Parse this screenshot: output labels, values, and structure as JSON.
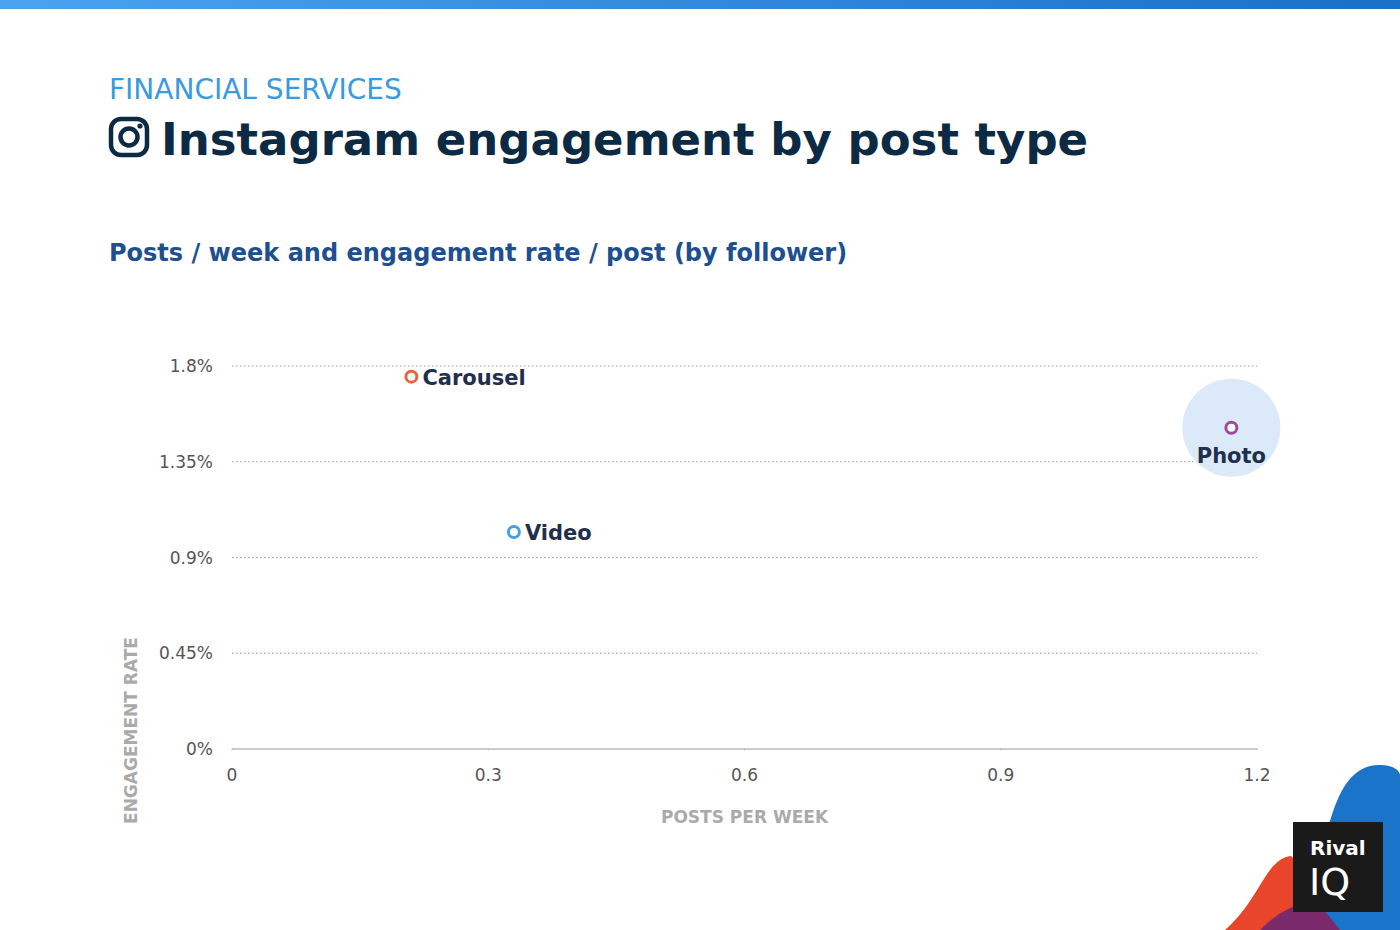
{
  "chart_data": {
    "type": "scatter",
    "supertitle": "FINANCIAL SERVICES",
    "title": "Instagram engagement by post type",
    "subtitle": "Posts / week and engagement rate / post (by follower)",
    "x_label": "POSTS PER WEEK",
    "y_label": "ENGAGEMENT RATE",
    "xlim": [
      0,
      1.2
    ],
    "xticks": [
      0,
      0.3,
      0.6,
      0.9,
      1.2
    ],
    "ylim": [
      0,
      1.8
    ],
    "yticks": [
      {
        "value": 0,
        "label": "0%"
      },
      {
        "value": 0.45,
        "label": "0.45%"
      },
      {
        "value": 0.9,
        "label": "0.9%"
      },
      {
        "value": 1.35,
        "label": "1.35%"
      },
      {
        "value": 1.8,
        "label": "1.8%"
      }
    ],
    "grid": true,
    "series": [
      {
        "name": "Carousel",
        "color": "#e8643a",
        "marker": "circle",
        "x": [
          0.21
        ],
        "values": [
          1.75
        ]
      },
      {
        "name": "Video",
        "color": "#4a9ee8",
        "marker": "circle",
        "x": [
          0.33
        ],
        "values": [
          1.02
        ]
      },
      {
        "name": "Photo",
        "color": "#a3479f",
        "marker": "highlighted-circle",
        "x": [
          1.17
        ],
        "values": [
          1.51
        ]
      }
    ],
    "logo": [
      "Rival",
      "IQ"
    ]
  }
}
